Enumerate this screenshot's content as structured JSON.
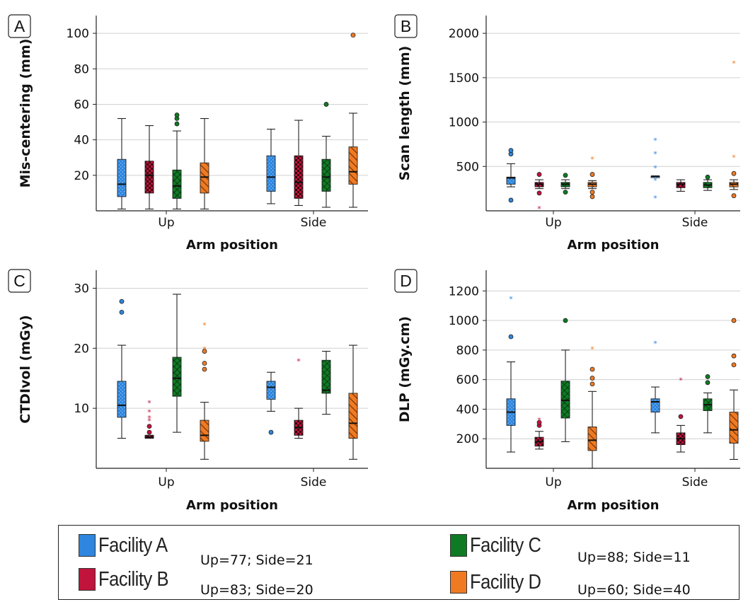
{
  "colors": {
    "Facility A": "#2e86de",
    "Facility B": "#c0143c",
    "Facility C": "#0f7a24",
    "Facility D": "#f07a22"
  },
  "facilities": [
    "Facility A",
    "Facility B",
    "Facility C",
    "Facility D"
  ],
  "legend": {
    "items": [
      {
        "name": "Facility A",
        "counts": "Up=77; Side=21"
      },
      {
        "name": "Facility B",
        "counts": "Up=83; Side=20"
      },
      {
        "name": "Facility C",
        "counts": "Up=88; Side=11"
      },
      {
        "name": "Facility D",
        "counts": "Up=60; Side=40"
      }
    ]
  },
  "chart_data": [
    {
      "type": "box",
      "panel": "A",
      "xlabel": "Arm position",
      "ylabel": "Mis-centering (mm)",
      "categories": [
        "Up",
        "Side"
      ],
      "ylim": [
        0,
        110
      ],
      "yticks": [
        20,
        40,
        60,
        80,
        100
      ],
      "grid": true,
      "boxes": [
        {
          "group": "Up",
          "facility": "Facility A",
          "min": 1,
          "q1": 8,
          "median": 15,
          "q3": 29,
          "max": 52,
          "outliers": []
        },
        {
          "group": "Up",
          "facility": "Facility B",
          "min": 1,
          "q1": 10,
          "median": 20,
          "q3": 28,
          "max": 48,
          "outliers": []
        },
        {
          "group": "Up",
          "facility": "Facility C",
          "min": 1,
          "q1": 7,
          "median": 14,
          "q3": 23,
          "max": 45,
          "outliers": [
            {
              "v": 49,
              "m": "o"
            },
            {
              "v": 52,
              "m": "o"
            },
            {
              "v": 54,
              "m": "o"
            }
          ]
        },
        {
          "group": "Up",
          "facility": "Facility D",
          "min": 1,
          "q1": 10,
          "median": 19,
          "q3": 27,
          "max": 52,
          "outliers": []
        },
        {
          "group": "Side",
          "facility": "Facility A",
          "min": 4,
          "q1": 11,
          "median": 19,
          "q3": 31,
          "max": 46,
          "outliers": []
        },
        {
          "group": "Side",
          "facility": "Facility B",
          "min": 3,
          "q1": 7,
          "median": 16,
          "q3": 31,
          "max": 51,
          "outliers": []
        },
        {
          "group": "Side",
          "facility": "Facility C",
          "min": 2,
          "q1": 11,
          "median": 19,
          "q3": 29,
          "max": 42,
          "outliers": [
            {
              "v": 60,
              "m": "o"
            }
          ]
        },
        {
          "group": "Side",
          "facility": "Facility D",
          "min": 2,
          "q1": 15,
          "median": 22,
          "q3": 36,
          "max": 55,
          "outliers": [
            {
              "v": 99,
              "m": "o"
            }
          ]
        }
      ]
    },
    {
      "type": "box",
      "panel": "B",
      "xlabel": "Arm position",
      "ylabel": "Scan length (mm)",
      "categories": [
        "Up",
        "Side"
      ],
      "ylim": [
        0,
        2200
      ],
      "yticks": [
        500,
        1000,
        1500,
        2000
      ],
      "grid": true,
      "boxes": [
        {
          "group": "Up",
          "facility": "Facility A",
          "min": 270,
          "q1": 300,
          "median": 370,
          "q3": 380,
          "max": 530,
          "outliers": [
            {
              "v": 120,
              "m": "o"
            },
            {
              "v": 640,
              "m": "o"
            },
            {
              "v": 680,
              "m": "o"
            }
          ]
        },
        {
          "group": "Up",
          "facility": "Facility B",
          "min": 250,
          "q1": 270,
          "median": 300,
          "q3": 320,
          "max": 350,
          "outliers": [
            {
              "v": 200,
              "m": "o"
            },
            {
              "v": 410,
              "m": "o"
            },
            {
              "v": 30,
              "m": "*"
            }
          ]
        },
        {
          "group": "Up",
          "facility": "Facility C",
          "min": 250,
          "q1": 270,
          "median": 300,
          "q3": 320,
          "max": 350,
          "outliers": [
            {
              "v": 210,
              "m": "o"
            },
            {
              "v": 400,
              "m": "o"
            }
          ]
        },
        {
          "group": "Up",
          "facility": "Facility D",
          "min": 250,
          "q1": 270,
          "median": 300,
          "q3": 320,
          "max": 340,
          "outliers": [
            {
              "v": 160,
              "m": "o"
            },
            {
              "v": 210,
              "m": "o"
            },
            {
              "v": 410,
              "m": "o"
            },
            {
              "v": 590,
              "m": "*"
            }
          ]
        },
        {
          "group": "Side",
          "facility": "Facility A",
          "min": 380,
          "q1": 380,
          "median": 390,
          "q3": 390,
          "max": 390,
          "outliers": [
            {
              "v": 150,
              "m": "*"
            },
            {
              "v": 350,
              "m": "*"
            },
            {
              "v": 490,
              "m": "*"
            },
            {
              "v": 650,
              "m": "*"
            },
            {
              "v": 800,
              "m": "*"
            }
          ]
        },
        {
          "group": "Side",
          "facility": "Facility B",
          "min": 220,
          "q1": 260,
          "median": 300,
          "q3": 320,
          "max": 350,
          "outliers": []
        },
        {
          "group": "Side",
          "facility": "Facility C",
          "min": 230,
          "q1": 260,
          "median": 290,
          "q3": 320,
          "max": 350,
          "outliers": [
            {
              "v": 380,
              "m": "o"
            }
          ]
        },
        {
          "group": "Side",
          "facility": "Facility D",
          "min": 240,
          "q1": 270,
          "median": 300,
          "q3": 320,
          "max": 350,
          "outliers": [
            {
              "v": 170,
              "m": "o"
            },
            {
              "v": 420,
              "m": "o"
            },
            {
              "v": 610,
              "m": "*"
            },
            {
              "v": 1670,
              "m": "*"
            }
          ]
        }
      ]
    },
    {
      "type": "box",
      "panel": "C",
      "xlabel": "Arm position",
      "ylabel": "CTDIvol (mGy)",
      "categories": [
        "Up",
        "Side"
      ],
      "ylim": [
        0,
        33
      ],
      "yticks": [
        10,
        20,
        30
      ],
      "grid": true,
      "boxes": [
        {
          "group": "Up",
          "facility": "Facility A",
          "min": 5,
          "q1": 8.5,
          "median": 10.5,
          "q3": 14.5,
          "max": 20.5,
          "outliers": [
            {
              "v": 26,
              "m": "o"
            },
            {
              "v": 27.8,
              "m": "o"
            }
          ]
        },
        {
          "group": "Up",
          "facility": "Facility B",
          "min": 5,
          "q1": 5,
          "median": 5.2,
          "q3": 5.5,
          "max": 5.5,
          "outliers": [
            {
              "v": 6,
              "m": "o"
            },
            {
              "v": 7,
              "m": "o"
            },
            {
              "v": 8,
              "m": "*"
            },
            {
              "v": 8.5,
              "m": "*"
            },
            {
              "v": 9.5,
              "m": "*"
            },
            {
              "v": 11,
              "m": "*"
            }
          ]
        },
        {
          "group": "Up",
          "facility": "Facility C",
          "min": 6,
          "q1": 12,
          "median": 15,
          "q3": 18.5,
          "max": 29,
          "outliers": []
        },
        {
          "group": "Up",
          "facility": "Facility D",
          "min": 1.5,
          "q1": 4.5,
          "median": 5.5,
          "q3": 8,
          "max": 11,
          "outliers": [
            {
              "v": 16.5,
              "m": "o"
            },
            {
              "v": 17.5,
              "m": "o"
            },
            {
              "v": 19.5,
              "m": "o"
            },
            {
              "v": 20,
              "m": "*"
            },
            {
              "v": 24,
              "m": "*"
            }
          ]
        },
        {
          "group": "Side",
          "facility": "Facility A",
          "min": 9.5,
          "q1": 11.5,
          "median": 13.5,
          "q3": 14.5,
          "max": 16,
          "outliers": [
            {
              "v": 6,
              "m": "o"
            }
          ]
        },
        {
          "group": "Side",
          "facility": "Facility B",
          "min": 5,
          "q1": 5.5,
          "median": 6.8,
          "q3": 8,
          "max": 10,
          "outliers": [
            {
              "v": 18,
              "m": "*"
            }
          ]
        },
        {
          "group": "Side",
          "facility": "Facility C",
          "min": 9,
          "q1": 12.5,
          "median": 13,
          "q3": 18,
          "max": 19.5,
          "outliers": []
        },
        {
          "group": "Side",
          "facility": "Facility D",
          "min": 1.5,
          "q1": 5,
          "median": 7.5,
          "q3": 12.5,
          "max": 20.5,
          "outliers": []
        }
      ]
    },
    {
      "type": "box",
      "panel": "D",
      "xlabel": "Arm position",
      "ylabel": "DLP (mGy.cm)",
      "categories": [
        "Up",
        "Side"
      ],
      "ylim": [
        0,
        1340
      ],
      "yticks": [
        200,
        400,
        600,
        800,
        1000,
        1200
      ],
      "grid": true,
      "boxes": [
        {
          "group": "Up",
          "facility": "Facility A",
          "min": 110,
          "q1": 290,
          "median": 380,
          "q3": 470,
          "max": 720,
          "outliers": [
            {
              "v": 890,
              "m": "o"
            },
            {
              "v": 1150,
              "m": "*"
            }
          ]
        },
        {
          "group": "Up",
          "facility": "Facility B",
          "min": 130,
          "q1": 150,
          "median": 180,
          "q3": 210,
          "max": 250,
          "outliers": [
            {
              "v": 290,
              "m": "o"
            },
            {
              "v": 310,
              "m": "o"
            },
            {
              "v": 330,
              "m": "*"
            }
          ]
        },
        {
          "group": "Up",
          "facility": "Facility C",
          "min": 180,
          "q1": 340,
          "median": 460,
          "q3": 590,
          "max": 800,
          "outliers": [
            {
              "v": 1000,
              "m": "o"
            }
          ]
        },
        {
          "group": "Up",
          "facility": "Facility D",
          "min": 0,
          "q1": 120,
          "median": 190,
          "q3": 280,
          "max": 520,
          "outliers": [
            {
              "v": 570,
              "m": "o"
            },
            {
              "v": 610,
              "m": "o"
            },
            {
              "v": 670,
              "m": "o"
            },
            {
              "v": 810,
              "m": "*"
            }
          ]
        },
        {
          "group": "Side",
          "facility": "Facility A",
          "min": 240,
          "q1": 380,
          "median": 450,
          "q3": 470,
          "max": 550,
          "outliers": [
            {
              "v": 850,
              "m": "*"
            }
          ]
        },
        {
          "group": "Side",
          "facility": "Facility B",
          "min": 110,
          "q1": 160,
          "median": 200,
          "q3": 240,
          "max": 290,
          "outliers": [
            {
              "v": 350,
              "m": "o"
            },
            {
              "v": 600,
              "m": "*"
            }
          ]
        },
        {
          "group": "Side",
          "facility": "Facility C",
          "min": 240,
          "q1": 390,
          "median": 430,
          "q3": 470,
          "max": 510,
          "outliers": [
            {
              "v": 580,
              "m": "o"
            },
            {
              "v": 620,
              "m": "o"
            }
          ]
        },
        {
          "group": "Side",
          "facility": "Facility D",
          "min": 60,
          "q1": 170,
          "median": 260,
          "q3": 380,
          "max": 530,
          "outliers": [
            {
              "v": 700,
              "m": "o"
            },
            {
              "v": 760,
              "m": "o"
            },
            {
              "v": 1000,
              "m": "o"
            }
          ]
        }
      ]
    }
  ]
}
